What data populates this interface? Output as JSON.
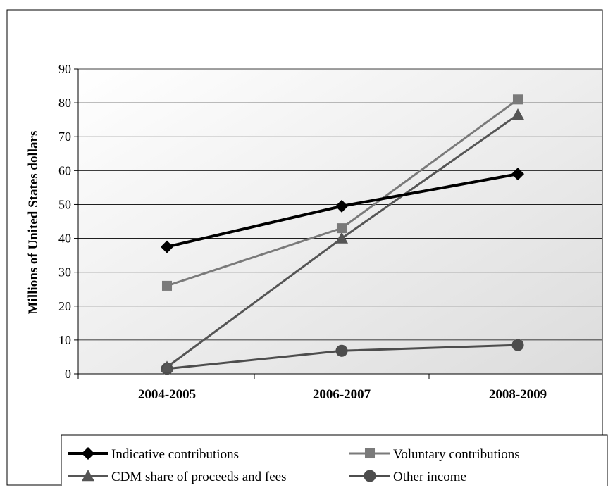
{
  "chart_data": {
    "type": "line",
    "categories": [
      "2004-2005",
      "2006-2007",
      "2008-2009"
    ],
    "ylabel": "Millions of United States dollars",
    "xlabel": "",
    "ylim": [
      0,
      90
    ],
    "yticks": [
      0,
      10,
      20,
      30,
      40,
      50,
      60,
      70,
      80,
      90
    ],
    "grid": true,
    "legend_position": "bottom",
    "series": [
      {
        "name": "Indicative contributions",
        "values": [
          37.5,
          49.5,
          59
        ],
        "color": "#000000",
        "marker": "diamond"
      },
      {
        "name": "Voluntary contributions",
        "values": [
          26,
          43,
          81
        ],
        "color": "#7a7a7a",
        "marker": "square"
      },
      {
        "name": "CDM share of proceeds and fees",
        "values": [
          2,
          40,
          76.5
        ],
        "color": "#555555",
        "marker": "triangle"
      },
      {
        "name": "Other income",
        "values": [
          1.5,
          6.8,
          8.5
        ],
        "color": "#4d4d4d",
        "marker": "circle"
      }
    ]
  }
}
